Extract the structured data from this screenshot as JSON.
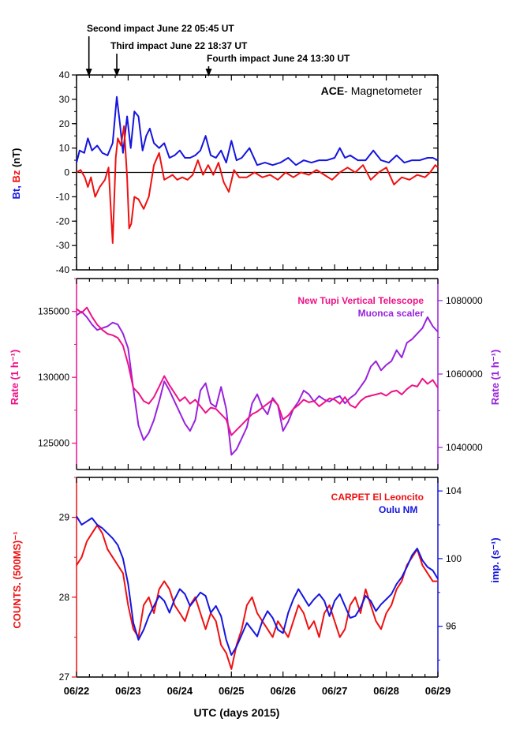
{
  "annotations": [
    {
      "text": "Second impact June 22 05:45 UT",
      "x": 0.24
    },
    {
      "text": "Third impact June 22 18:37 UT",
      "x": 0.78
    },
    {
      "text": "Fourth impact June 24 13:30 UT",
      "x": 2.56
    }
  ],
  "x_axis": {
    "label": "UTC (days 2015)",
    "range": [
      0,
      7
    ],
    "ticks": [
      {
        "value": 0,
        "label": "06/22"
      },
      {
        "value": 1,
        "label": "06/23"
      },
      {
        "value": 2,
        "label": "06/24"
      },
      {
        "value": 3,
        "label": "06/25"
      },
      {
        "value": 4,
        "label": "06/26"
      },
      {
        "value": 5,
        "label": "06/27"
      },
      {
        "value": 6,
        "label": "06/28"
      },
      {
        "value": 7,
        "label": "06/29"
      }
    ]
  },
  "colors": {
    "red": "#ee1111",
    "blue": "#1515e0",
    "pink": "#ee1188",
    "purple": "#9922dd",
    "black": "#000000"
  },
  "chart_data": [
    {
      "type": "line",
      "title": "ACE- Magnetometer",
      "title_bold_part": "ACE",
      "title_rest": "- Magnetometer",
      "ylabel_parts": [
        {
          "text": "Bt, ",
          "color": "#1515e0"
        },
        {
          "text": "Bz",
          "color": "#ee1111"
        },
        {
          "text": "  (nT)",
          "color": "#000000"
        }
      ],
      "ylim": [
        -40,
        40
      ],
      "yticks": [
        -40,
        -30,
        -20,
        -10,
        0,
        10,
        20,
        30,
        40
      ],
      "zero_line": true,
      "series": [
        {
          "name": "Bt",
          "color": "#1515e0",
          "x": [
            0,
            0.06,
            0.15,
            0.22,
            0.3,
            0.4,
            0.5,
            0.6,
            0.7,
            0.78,
            0.84,
            0.9,
            0.98,
            1.05,
            1.12,
            1.2,
            1.28,
            1.35,
            1.42,
            1.5,
            1.6,
            1.7,
            1.8,
            1.9,
            2.0,
            2.1,
            2.2,
            2.3,
            2.4,
            2.5,
            2.6,
            2.7,
            2.8,
            2.9,
            3.0,
            3.1,
            3.2,
            3.35,
            3.5,
            3.65,
            3.8,
            3.95,
            4.1,
            4.25,
            4.4,
            4.55,
            4.7,
            4.85,
            5.0,
            5.1,
            5.2,
            5.3,
            5.45,
            5.6,
            5.75,
            5.9,
            6.05,
            6.2,
            6.35,
            6.5,
            6.65,
            6.8,
            6.9,
            7.0
          ],
          "y": [
            4,
            9,
            8,
            14,
            9,
            11,
            8,
            7,
            12,
            31,
            20,
            8,
            23,
            10,
            25,
            23,
            9,
            15,
            18,
            12,
            10,
            12,
            6,
            7,
            9,
            6,
            6,
            7,
            9,
            15,
            7,
            6,
            9,
            4,
            13,
            5,
            6,
            10,
            3,
            4,
            3,
            4,
            6,
            3,
            5,
            4,
            5,
            5,
            6,
            10,
            6,
            7,
            5,
            5,
            9,
            5,
            4,
            7,
            4,
            5,
            5,
            6,
            6,
            5
          ]
        },
        {
          "name": "Bz",
          "color": "#ee1111",
          "x": [
            0,
            0.08,
            0.16,
            0.22,
            0.28,
            0.36,
            0.45,
            0.55,
            0.62,
            0.7,
            0.76,
            0.8,
            0.86,
            0.92,
            0.98,
            1.02,
            1.06,
            1.12,
            1.2,
            1.3,
            1.4,
            1.5,
            1.6,
            1.7,
            1.78,
            1.86,
            1.95,
            2.05,
            2.15,
            2.25,
            2.35,
            2.45,
            2.55,
            2.65,
            2.75,
            2.85,
            2.95,
            3.05,
            3.15,
            3.3,
            3.45,
            3.6,
            3.75,
            3.9,
            4.05,
            4.2,
            4.35,
            4.5,
            4.65,
            4.8,
            4.95,
            5.1,
            5.25,
            5.4,
            5.55,
            5.7,
            5.85,
            6.0,
            6.15,
            6.3,
            6.45,
            6.6,
            6.75,
            6.85,
            6.95,
            7.0
          ],
          "y": [
            0,
            1,
            -2,
            -6,
            -2,
            -10,
            -6,
            -3,
            2,
            -29,
            6,
            14,
            11,
            19,
            -2,
            -23,
            -21,
            -10,
            -11,
            -15,
            -10,
            3,
            8,
            -3,
            -2,
            -1,
            -3,
            -2,
            -3,
            -1,
            5,
            -1,
            3,
            -1,
            4,
            -4,
            -8,
            1,
            -2,
            -2,
            0,
            -2,
            -1,
            -3,
            0,
            -2,
            0,
            -1,
            1,
            -1,
            -3,
            0,
            2,
            0,
            3,
            -3,
            0,
            2,
            -5,
            -2,
            -3,
            -1,
            -2,
            0,
            3,
            2
          ]
        }
      ]
    },
    {
      "type": "line",
      "ylabel_left": "Rate (1 h⁻¹)",
      "ylabel_right": "Rate (1 h⁻¹)",
      "ylim_left": [
        123000,
        137500
      ],
      "yticks_left": [
        125000,
        130000,
        135000
      ],
      "ylim_right": [
        1034000,
        1086000
      ],
      "yticks_right": [
        1040000,
        1060000,
        1080000
      ],
      "legend_placement": "top-right",
      "series": [
        {
          "name": "New Tupi Vertical Telescope",
          "color": "#ee1188",
          "axis": "left",
          "x": [
            0,
            0.1,
            0.2,
            0.3,
            0.4,
            0.5,
            0.6,
            0.7,
            0.8,
            0.9,
            1.0,
            1.1,
            1.2,
            1.3,
            1.4,
            1.5,
            1.6,
            1.7,
            1.8,
            1.9,
            2.0,
            2.1,
            2.2,
            2.3,
            2.4,
            2.5,
            2.6,
            2.7,
            2.8,
            2.9,
            3.0,
            3.1,
            3.2,
            3.3,
            3.4,
            3.5,
            3.6,
            3.7,
            3.8,
            3.9,
            4.0,
            4.1,
            4.2,
            4.3,
            4.4,
            4.5,
            4.6,
            4.7,
            4.8,
            4.9,
            5.0,
            5.1,
            5.2,
            5.3,
            5.4,
            5.5,
            5.6,
            5.7,
            5.8,
            5.9,
            6.0,
            6.1,
            6.2,
            6.3,
            6.4,
            6.5,
            6.6,
            6.7,
            6.8,
            6.9,
            7.0
          ],
          "y": [
            135200,
            134900,
            135300,
            134600,
            134000,
            133600,
            133300,
            133200,
            133000,
            132400,
            131000,
            129200,
            128800,
            128200,
            128000,
            128500,
            129300,
            130100,
            129400,
            128800,
            128200,
            128500,
            128000,
            128300,
            127800,
            127300,
            127700,
            127600,
            127200,
            126800,
            125600,
            126000,
            126400,
            126800,
            127200,
            127400,
            127700,
            128000,
            128300,
            127900,
            126800,
            127100,
            127600,
            127900,
            128300,
            128100,
            128200,
            127800,
            128100,
            128400,
            128300,
            128000,
            128500,
            127900,
            127700,
            128200,
            128500,
            128600,
            128700,
            128800,
            128600,
            128900,
            129000,
            128700,
            129100,
            129400,
            129300,
            129900,
            129500,
            129800,
            129200
          ]
        },
        {
          "name": "Muonca scaler",
          "color": "#9922dd",
          "axis": "right",
          "x": [
            0,
            0.1,
            0.2,
            0.3,
            0.4,
            0.5,
            0.6,
            0.7,
            0.8,
            0.9,
            1.0,
            1.1,
            1.2,
            1.3,
            1.4,
            1.5,
            1.6,
            1.7,
            1.8,
            1.9,
            2.0,
            2.1,
            2.2,
            2.3,
            2.4,
            2.5,
            2.6,
            2.7,
            2.8,
            2.9,
            3.0,
            3.1,
            3.2,
            3.3,
            3.4,
            3.5,
            3.6,
            3.7,
            3.8,
            3.9,
            4.0,
            4.1,
            4.2,
            4.3,
            4.4,
            4.5,
            4.6,
            4.7,
            4.8,
            4.9,
            5.0,
            5.1,
            5.2,
            5.3,
            5.4,
            5.5,
            5.6,
            5.7,
            5.8,
            5.9,
            6.0,
            6.1,
            6.2,
            6.3,
            6.4,
            6.5,
            6.6,
            6.7,
            6.8,
            6.9,
            7.0
          ],
          "y": [
            1076000,
            1077000,
            1075500,
            1073500,
            1072000,
            1072500,
            1073000,
            1074000,
            1073500,
            1071000,
            1067000,
            1056000,
            1046000,
            1042000,
            1044000,
            1047500,
            1052500,
            1058000,
            1055500,
            1052500,
            1049500,
            1046500,
            1044500,
            1047500,
            1055500,
            1057500,
            1052000,
            1051000,
            1056500,
            1050500,
            1038000,
            1039500,
            1042500,
            1045500,
            1052000,
            1054500,
            1051000,
            1049000,
            1053500,
            1051500,
            1044500,
            1047000,
            1050500,
            1052500,
            1055500,
            1054500,
            1052500,
            1054000,
            1053000,
            1052500,
            1053500,
            1054000,
            1052000,
            1053500,
            1054500,
            1056500,
            1058500,
            1062000,
            1063500,
            1061000,
            1062500,
            1063500,
            1066500,
            1064500,
            1068500,
            1069500,
            1071000,
            1072500,
            1075500,
            1073000,
            1071500
          ]
        }
      ]
    },
    {
      "type": "line",
      "ylabel_left": "COUNTS. (500MS)⁻¹",
      "ylabel_right": "imp. (s⁻¹)",
      "ylim_left": [
        27,
        29.5
      ],
      "yticks_left": [
        27,
        28,
        29
      ],
      "ylim_right": [
        93,
        104.8
      ],
      "yticks_right": [
        96,
        100,
        104
      ],
      "legend_placement": "top-right",
      "series": [
        {
          "name": "CARPET El Leoncito",
          "color": "#ee1111",
          "axis": "left",
          "x": [
            0,
            0.1,
            0.2,
            0.3,
            0.4,
            0.5,
            0.6,
            0.7,
            0.8,
            0.9,
            1.0,
            1.1,
            1.2,
            1.3,
            1.4,
            1.5,
            1.6,
            1.7,
            1.8,
            1.9,
            2.0,
            2.1,
            2.2,
            2.3,
            2.4,
            2.5,
            2.6,
            2.7,
            2.8,
            2.9,
            3.0,
            3.1,
            3.2,
            3.3,
            3.4,
            3.5,
            3.6,
            3.7,
            3.8,
            3.9,
            4.0,
            4.1,
            4.2,
            4.3,
            4.4,
            4.5,
            4.6,
            4.7,
            4.8,
            4.9,
            5.0,
            5.1,
            5.2,
            5.3,
            5.4,
            5.5,
            5.6,
            5.7,
            5.8,
            5.9,
            6.0,
            6.1,
            6.2,
            6.3,
            6.4,
            6.5,
            6.6,
            6.7,
            6.8,
            6.9,
            7.0
          ],
          "y": [
            28.4,
            28.5,
            28.7,
            28.8,
            28.9,
            28.8,
            28.6,
            28.5,
            28.4,
            28.3,
            27.9,
            27.6,
            27.5,
            27.9,
            28.0,
            27.8,
            28.1,
            28.2,
            28.1,
            27.9,
            27.8,
            27.7,
            27.9,
            28.0,
            27.8,
            27.6,
            27.8,
            27.7,
            27.4,
            27.3,
            27.1,
            27.4,
            27.6,
            27.9,
            28.0,
            27.8,
            27.7,
            27.6,
            27.5,
            27.7,
            27.6,
            27.5,
            27.7,
            27.9,
            27.8,
            27.6,
            27.7,
            27.5,
            27.8,
            27.9,
            27.7,
            27.5,
            27.6,
            27.9,
            28.0,
            27.8,
            28.1,
            27.9,
            27.7,
            27.6,
            27.8,
            27.9,
            28.1,
            28.2,
            28.4,
            28.5,
            28.6,
            28.4,
            28.3,
            28.2,
            28.2
          ]
        },
        {
          "name": "Oulu NM",
          "color": "#1515e0",
          "axis": "right",
          "x": [
            0,
            0.1,
            0.2,
            0.3,
            0.4,
            0.5,
            0.6,
            0.7,
            0.8,
            0.9,
            1.0,
            1.1,
            1.2,
            1.3,
            1.4,
            1.5,
            1.6,
            1.7,
            1.8,
            1.9,
            2.0,
            2.1,
            2.2,
            2.3,
            2.4,
            2.5,
            2.6,
            2.7,
            2.8,
            2.9,
            3.0,
            3.1,
            3.2,
            3.3,
            3.4,
            3.5,
            3.6,
            3.7,
            3.8,
            3.9,
            4.0,
            4.1,
            4.2,
            4.3,
            4.4,
            4.5,
            4.6,
            4.7,
            4.8,
            4.9,
            5.0,
            5.1,
            5.2,
            5.3,
            5.4,
            5.5,
            5.6,
            5.7,
            5.8,
            5.9,
            6.0,
            6.1,
            6.2,
            6.3,
            6.4,
            6.5,
            6.6,
            6.7,
            6.8,
            6.9,
            7.0
          ],
          "y": [
            102.5,
            102.0,
            102.2,
            102.4,
            102.0,
            101.8,
            101.5,
            101.2,
            100.8,
            100.0,
            98.5,
            96.2,
            95.2,
            95.8,
            96.6,
            97.2,
            97.8,
            97.5,
            96.8,
            97.6,
            98.2,
            97.9,
            97.2,
            97.6,
            98.0,
            97.8,
            96.8,
            97.2,
            96.6,
            95.2,
            94.3,
            94.8,
            95.5,
            96.2,
            95.8,
            95.4,
            96.3,
            96.9,
            96.5,
            95.8,
            95.6,
            96.8,
            97.6,
            98.2,
            97.7,
            97.2,
            97.6,
            97.9,
            97.5,
            96.6,
            97.5,
            97.9,
            97.2,
            96.5,
            96.6,
            97.1,
            97.8,
            97.5,
            96.9,
            97.3,
            97.6,
            97.9,
            98.5,
            98.9,
            99.5,
            100.2,
            100.6,
            99.9,
            99.5,
            99.3,
            98.8
          ]
        }
      ]
    }
  ]
}
